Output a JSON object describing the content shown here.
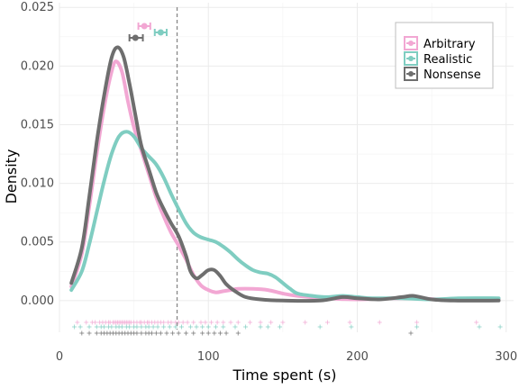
{
  "chart_data": {
    "type": "line",
    "xlabel": "Time spent (s)",
    "ylabel": "Density",
    "xlim": [
      0,
      305
    ],
    "ylim": [
      -0.0027,
      0.0254
    ],
    "x_ticks": [
      0,
      100,
      200,
      300
    ],
    "x_tick_labels": [
      "0",
      "100",
      "200",
      "300"
    ],
    "y_ticks": [
      0,
      0.005,
      0.01,
      0.015,
      0.02,
      0.025
    ],
    "y_tick_labels": [
      "0.000",
      "0.005",
      "0.010",
      "0.015",
      "0.020",
      "0.025"
    ],
    "grid": true,
    "legend_position": "top-right",
    "reference_line": {
      "x": 79,
      "style": "dashed",
      "color": "#888888"
    },
    "series": [
      {
        "name": "Arbitrary",
        "color": "#F2A7D3",
        "density": [
          [
            8,
            0.0012
          ],
          [
            15,
            0.004
          ],
          [
            20,
            0.008
          ],
          [
            25,
            0.0125
          ],
          [
            30,
            0.0165
          ],
          [
            35,
            0.0195
          ],
          [
            38,
            0.0204
          ],
          [
            42,
            0.0195
          ],
          [
            46,
            0.017
          ],
          [
            50,
            0.0148
          ],
          [
            55,
            0.0128
          ],
          [
            60,
            0.0108
          ],
          [
            65,
            0.0088
          ],
          [
            70,
            0.0072
          ],
          [
            75,
            0.0058
          ],
          [
            80,
            0.0047
          ],
          [
            85,
            0.0035
          ],
          [
            90,
            0.0022
          ],
          [
            95,
            0.0013
          ],
          [
            100,
            0.0009
          ],
          [
            105,
            0.0007
          ],
          [
            110,
            0.0008
          ],
          [
            115,
            0.0009
          ],
          [
            120,
            0.001
          ],
          [
            130,
            0.001
          ],
          [
            140,
            0.0009
          ],
          [
            150,
            0.0006
          ],
          [
            160,
            0.0004
          ],
          [
            180,
            0.0002
          ],
          [
            200,
            0.0001
          ],
          [
            230,
            0.0002
          ],
          [
            260,
            0.0001
          ],
          [
            295,
            0.0001
          ]
        ],
        "mean": 57,
        "ci": [
          53,
          61
        ],
        "rug": [
          12,
          18,
          22,
          24,
          27,
          29,
          31,
          33,
          34,
          36,
          37,
          38,
          39,
          40,
          41,
          42,
          43,
          44,
          45,
          46,
          47,
          48,
          50,
          52,
          54,
          55,
          57,
          59,
          60,
          62,
          64,
          66,
          68,
          70,
          73,
          75,
          78,
          80,
          83,
          86,
          90,
          95,
          98,
          102,
          106,
          110,
          115,
          120,
          128,
          135,
          142,
          150,
          165,
          180,
          195,
          215,
          240,
          280
        ]
      },
      {
        "name": "Realistic",
        "color": "#7FCDC1",
        "density": [
          [
            8,
            0.0009
          ],
          [
            15,
            0.0025
          ],
          [
            20,
            0.0048
          ],
          [
            25,
            0.0075
          ],
          [
            30,
            0.0102
          ],
          [
            35,
            0.0125
          ],
          [
            40,
            0.014
          ],
          [
            45,
            0.0144
          ],
          [
            50,
            0.014
          ],
          [
            55,
            0.013
          ],
          [
            60,
            0.0123
          ],
          [
            65,
            0.0116
          ],
          [
            70,
            0.0105
          ],
          [
            75,
            0.0091
          ],
          [
            80,
            0.0078
          ],
          [
            85,
            0.0066
          ],
          [
            90,
            0.0058
          ],
          [
            95,
            0.0054
          ],
          [
            100,
            0.0052
          ],
          [
            105,
            0.005
          ],
          [
            110,
            0.0046
          ],
          [
            115,
            0.0041
          ],
          [
            120,
            0.0035
          ],
          [
            125,
            0.003
          ],
          [
            130,
            0.0026
          ],
          [
            135,
            0.0024
          ],
          [
            140,
            0.0023
          ],
          [
            145,
            0.002
          ],
          [
            150,
            0.0015
          ],
          [
            155,
            0.001
          ],
          [
            160,
            0.0006
          ],
          [
            170,
            0.0004
          ],
          [
            180,
            0.0003
          ],
          [
            190,
            0.0004
          ],
          [
            200,
            0.0003
          ],
          [
            210,
            0.0002
          ],
          [
            230,
            0.0002
          ],
          [
            250,
            0.0001
          ],
          [
            270,
            0.0002
          ],
          [
            295,
            0.0002
          ]
        ],
        "mean": 68,
        "ci": [
          64,
          72
        ],
        "rug": [
          10,
          14,
          20,
          25,
          28,
          30,
          33,
          35,
          38,
          40,
          42,
          45,
          47,
          50,
          52,
          55,
          58,
          60,
          63,
          66,
          70,
          74,
          78,
          82,
          88,
          92,
          96,
          100,
          105,
          110,
          118,
          125,
          135,
          140,
          148,
          175,
          196,
          240,
          282,
          296
        ]
      },
      {
        "name": "Nonsense",
        "color": "#6E6E6E",
        "density": [
          [
            8,
            0.0015
          ],
          [
            15,
            0.0045
          ],
          [
            20,
            0.0088
          ],
          [
            25,
            0.0135
          ],
          [
            30,
            0.0175
          ],
          [
            35,
            0.0207
          ],
          [
            39,
            0.0216
          ],
          [
            43,
            0.0208
          ],
          [
            47,
            0.0185
          ],
          [
            51,
            0.0158
          ],
          [
            55,
            0.0132
          ],
          [
            60,
            0.0112
          ],
          [
            65,
            0.0092
          ],
          [
            70,
            0.0078
          ],
          [
            75,
            0.0066
          ],
          [
            80,
            0.0055
          ],
          [
            85,
            0.0038
          ],
          [
            88,
            0.0025
          ],
          [
            92,
            0.0019
          ],
          [
            96,
            0.0022
          ],
          [
            100,
            0.0026
          ],
          [
            104,
            0.0026
          ],
          [
            108,
            0.0021
          ],
          [
            112,
            0.0014
          ],
          [
            118,
            0.0008
          ],
          [
            125,
            0.0003
          ],
          [
            135,
            0.0001
          ],
          [
            150,
            0.0
          ],
          [
            175,
            0.0
          ],
          [
            190,
            0.0003
          ],
          [
            200,
            0.0002
          ],
          [
            215,
            0.0001
          ],
          [
            230,
            0.0003
          ],
          [
            238,
            0.0004
          ],
          [
            250,
            0.0001
          ],
          [
            265,
            0.0
          ],
          [
            295,
            0.0
          ]
        ],
        "mean": 51,
        "ci": [
          47,
          56
        ],
        "rug": [
          15,
          20,
          25,
          28,
          30,
          32,
          34,
          36,
          38,
          40,
          42,
          44,
          46,
          48,
          50,
          52,
          55,
          58,
          60,
          62,
          65,
          68,
          72,
          76,
          80,
          85,
          90,
          96,
          100,
          104,
          108,
          112,
          120,
          236
        ]
      }
    ]
  }
}
